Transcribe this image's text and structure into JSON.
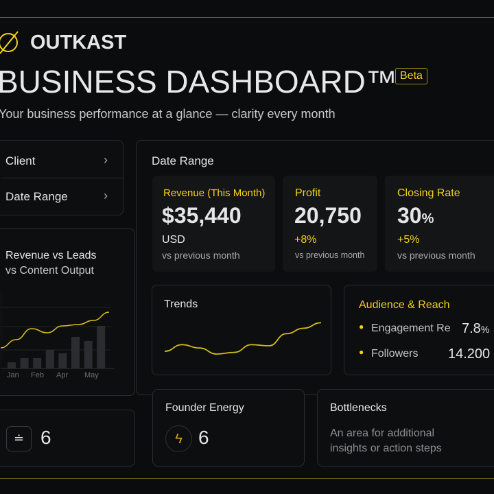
{
  "brand": {
    "name": "OUTKAST",
    "logo_icon": "slashed-circle-icon"
  },
  "header": {
    "title": "BUSINESS DASHBOARD™",
    "badge": "Beta",
    "subtitle": "Your business performance at a glance — clarity every month"
  },
  "colors": {
    "accent": "#f2d21b",
    "background": "#0b0c0e"
  },
  "sidebar": {
    "filters": [
      {
        "label": "Client"
      },
      {
        "label": "Date Range"
      }
    ],
    "chart_title_line1": "Revenue vs Leads",
    "chart_title_line2": "vs Content Output",
    "bottom_value": "6"
  },
  "chart_data": {
    "type": "bar",
    "categories": [
      "Jan",
      "",
      "Feb",
      "",
      "Apr",
      "",
      "May",
      ""
    ],
    "tick_labels": [
      "Jan",
      "Feb",
      "Apr",
      "May"
    ],
    "series": [
      {
        "type": "bar",
        "values": [
          9,
          15,
          15,
          27,
          22,
          46,
          40,
          62
        ]
      },
      {
        "type": "line",
        "values": [
          30,
          42,
          58,
          52,
          62,
          64,
          70,
          82
        ]
      }
    ],
    "grid": true
  },
  "main": {
    "section_title": "Date Range",
    "kpis": [
      {
        "label": "Revenue (This Month)",
        "value": "$35,440",
        "unit": "USD",
        "change": "",
        "note": "vs previous month"
      },
      {
        "label": "Profit",
        "value": "20,750",
        "unit": "",
        "change": "+8%",
        "note": "vs previous month"
      },
      {
        "label": "Closing Rate",
        "value": "30",
        "suffix": "%",
        "change": "+5%",
        "note": "vs previous month"
      }
    ],
    "trends": {
      "title": "Trends",
      "values": [
        20,
        32,
        26,
        15,
        18,
        32,
        30,
        52,
        62,
        72
      ]
    },
    "audience": {
      "title": "Audience & Reach",
      "items": [
        {
          "label": "Engagement Re",
          "value": "7.8",
          "suffix": "%"
        },
        {
          "label": "Followers",
          "value": "14.200"
        }
      ]
    },
    "founder": {
      "title": "Founder Energy",
      "value": "6"
    },
    "bottlenecks": {
      "title": "Bottlenecks",
      "text": "An area for additional insights or action steps"
    }
  }
}
